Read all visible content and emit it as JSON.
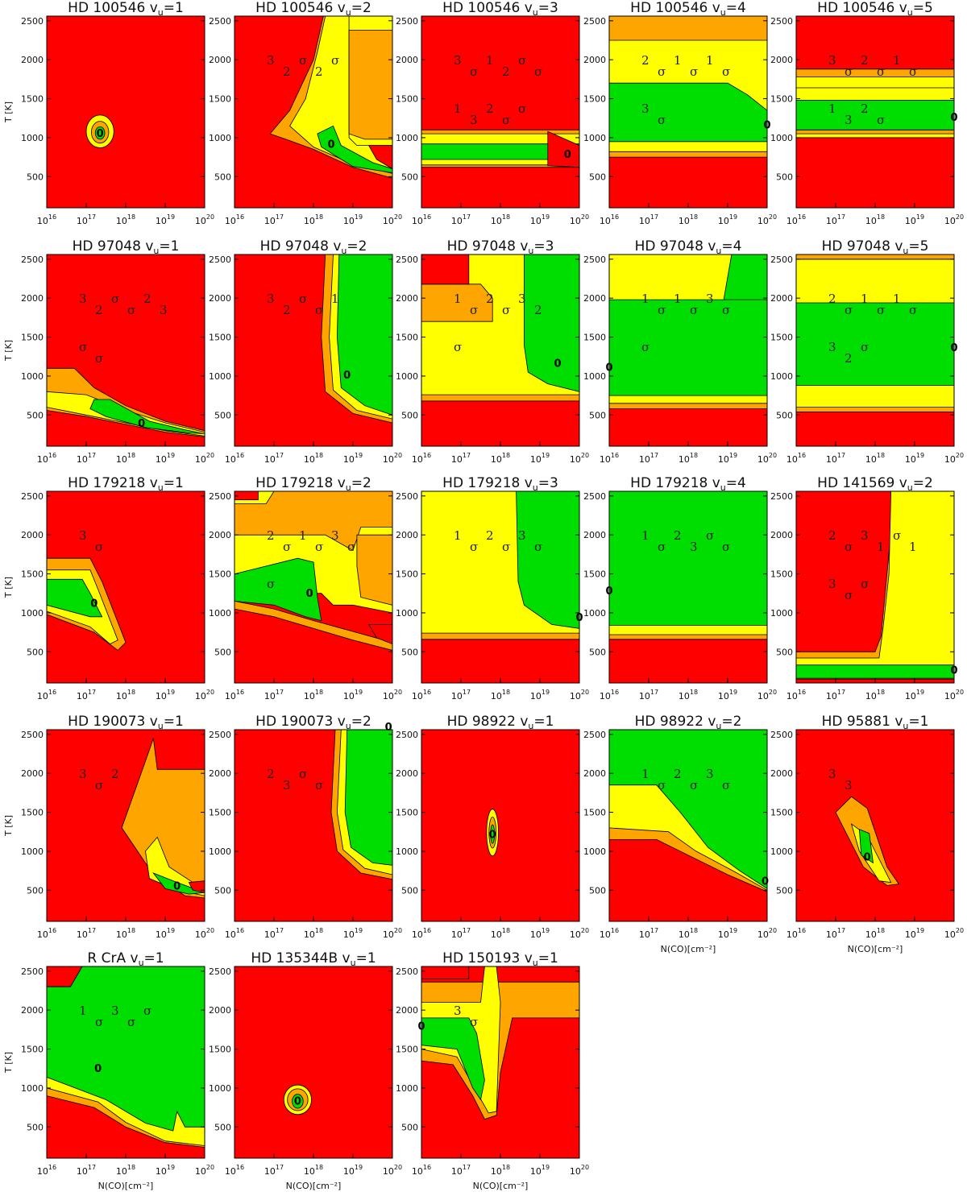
{
  "colors": {
    "within_1sigma": "#00dd00",
    "within_2sigma": "#ffff00",
    "within_3sigma": "#ffa500",
    "outside": "#ff0000",
    "contour": "#000000"
  },
  "axis": {
    "x_tick_exponents": [
      "16",
      "17",
      "18",
      "19",
      "20"
    ],
    "x_tick_base": "10",
    "y_ticks": [
      "500",
      "1000",
      "1500",
      "2000",
      "2500"
    ],
    "ylabel": "T [K]",
    "xlabel": "N(CO)[cm⁻²]",
    "best_fit_marker": "0"
  },
  "chart_data": [
    {
      "type": "heatmap",
      "title": "HD 100546  v",
      "vu": "u",
      "eq": "=1",
      "best_fit": {
        "logN": 17.35,
        "T": 1060
      },
      "contour_labels": []
    },
    {
      "type": "heatmap",
      "title": "HD 100546  v",
      "vu": "u",
      "eq": "=2",
      "best_fit": {
        "logN": 18.45,
        "T": 920
      },
      "contour_labels": [
        "3",
        "2",
        "σ",
        "2",
        "σ"
      ]
    },
    {
      "type": "heatmap",
      "title": "HD 100546  v",
      "vu": "u",
      "eq": "=3",
      "best_fit": {
        "logN": 19.7,
        "T": 790
      },
      "contour_labels": [
        "3",
        "σ",
        "1",
        "2",
        "σ",
        "σ",
        "1",
        "3",
        "2",
        "σ",
        "σ"
      ]
    },
    {
      "type": "heatmap",
      "title": "HD 100546  v",
      "vu": "u",
      "eq": "=4",
      "best_fit": {
        "logN": 20.0,
        "T": 1170
      },
      "contour_labels": [
        "2",
        "σ",
        "1",
        "σ",
        "1",
        "σ",
        "3",
        "σ"
      ]
    },
    {
      "type": "heatmap",
      "title": "HD 100546  v",
      "vu": "u",
      "eq": "=5",
      "best_fit": {
        "logN": 20.0,
        "T": 1270
      },
      "contour_labels": [
        "3",
        "σ",
        "2",
        "σ",
        "1",
        "σ",
        "1",
        "3",
        "2",
        "σ"
      ]
    },
    {
      "type": "heatmap",
      "title": "HD 97048  v",
      "vu": "u",
      "eq": "=1",
      "best_fit": {
        "logN": 18.4,
        "T": 400
      },
      "contour_labels": [
        "3",
        "2",
        "σ",
        "σ",
        "2",
        "3",
        "σ",
        "σ"
      ]
    },
    {
      "type": "heatmap",
      "title": "HD 97048  v",
      "vu": "u",
      "eq": "=2",
      "best_fit": {
        "logN": 18.85,
        "T": 1020
      },
      "contour_labels": [
        "3",
        "2",
        "σ",
        "σ",
        "1"
      ]
    },
    {
      "type": "heatmap",
      "title": "HD 97048  v",
      "vu": "u",
      "eq": "=3",
      "best_fit": {
        "logN": 19.45,
        "T": 1170
      },
      "contour_labels": [
        "1",
        "σ",
        "2",
        "σ",
        "3",
        "2",
        "σ"
      ]
    },
    {
      "type": "heatmap",
      "title": "HD 97048  v",
      "vu": "u",
      "eq": "=4",
      "best_fit": {
        "logN": 16.0,
        "T": 1120
      },
      "contour_labels": [
        "1",
        "σ",
        "1",
        "σ",
        "3",
        "σ",
        "σ"
      ]
    },
    {
      "type": "heatmap",
      "title": "HD 97048  v",
      "vu": "u",
      "eq": "=5",
      "best_fit": {
        "logN": 20.0,
        "T": 1370
      },
      "contour_labels": [
        "2",
        "σ",
        "1",
        "σ",
        "1",
        "σ",
        "3",
        "2",
        "σ"
      ]
    },
    {
      "type": "heatmap",
      "title": "HD 179218  v",
      "vu": "u",
      "eq": "=1",
      "best_fit": {
        "logN": 17.2,
        "T": 1130
      },
      "contour_labels": [
        "3",
        "σ"
      ]
    },
    {
      "type": "heatmap",
      "title": "HD 179218  v",
      "vu": "u",
      "eq": "=2",
      "best_fit": {
        "logN": 17.9,
        "T": 1260
      },
      "contour_labels": [
        "2",
        "σ",
        "1",
        "σ",
        "3",
        "σ",
        "σ"
      ]
    },
    {
      "type": "heatmap",
      "title": "HD 179218  v",
      "vu": "u",
      "eq": "=3",
      "best_fit": {
        "logN": 20.0,
        "T": 950
      },
      "contour_labels": [
        "1",
        "σ",
        "2",
        "σ",
        "3",
        "σ"
      ]
    },
    {
      "type": "heatmap",
      "title": "HD 179218  v",
      "vu": "u",
      "eq": "=4",
      "best_fit": {
        "logN": 16.0,
        "T": 1290
      },
      "contour_labels": [
        "1",
        "σ",
        "2",
        "3",
        "σ",
        "σ"
      ]
    },
    {
      "type": "heatmap",
      "title": "HD 141569  v",
      "vu": "u",
      "eq": "=2",
      "best_fit": {
        "logN": 20.0,
        "T": 270
      },
      "contour_labels": [
        "2",
        "σ",
        "3",
        "1",
        "σ",
        "1",
        "3",
        "σ",
        "σ"
      ]
    },
    {
      "type": "heatmap",
      "title": "HD 190073  v",
      "vu": "u",
      "eq": "=1",
      "best_fit": {
        "logN": 19.3,
        "T": 560
      },
      "contour_labels": [
        "3",
        "σ",
        "2"
      ]
    },
    {
      "type": "heatmap",
      "title": "HD 190073  v",
      "vu": "u",
      "eq": "=2",
      "best_fit": {
        "logN": 19.9,
        "T": 2600
      },
      "contour_labels": [
        "2",
        "3",
        "σ",
        "σ"
      ]
    },
    {
      "type": "heatmap",
      "title": "HD 98922  v",
      "vu": "u",
      "eq": "=1",
      "best_fit": {
        "logN": 17.8,
        "T": 1220
      },
      "contour_labels": []
    },
    {
      "type": "heatmap",
      "title": "HD 98922  v",
      "vu": "u",
      "eq": "=2",
      "best_fit": {
        "logN": 19.95,
        "T": 620
      },
      "contour_labels": [
        "1",
        "σ",
        "2",
        "σ",
        "3",
        "σ"
      ]
    },
    {
      "type": "heatmap",
      "title": "HD 95881  v",
      "vu": "u",
      "eq": "=1",
      "best_fit": {
        "logN": 17.8,
        "T": 930
      },
      "contour_labels": [
        "3",
        "3"
      ]
    },
    {
      "type": "heatmap",
      "title": "R CrA  v",
      "vu": "u",
      "eq": "=1",
      "best_fit": {
        "logN": 17.3,
        "T": 1260
      },
      "contour_labels": [
        "1",
        "σ",
        "3",
        "σ",
        "σ"
      ]
    },
    {
      "type": "heatmap",
      "title": "HD 135344B  v",
      "vu": "u",
      "eq": "=1",
      "best_fit": {
        "logN": 17.6,
        "T": 840
      },
      "contour_labels": []
    },
    {
      "type": "heatmap",
      "title": "HD 150193  v",
      "vu": "u",
      "eq": "=1",
      "best_fit": {
        "logN": 16.0,
        "T": 1800
      },
      "contour_labels": [
        "3",
        "σ"
      ]
    }
  ]
}
